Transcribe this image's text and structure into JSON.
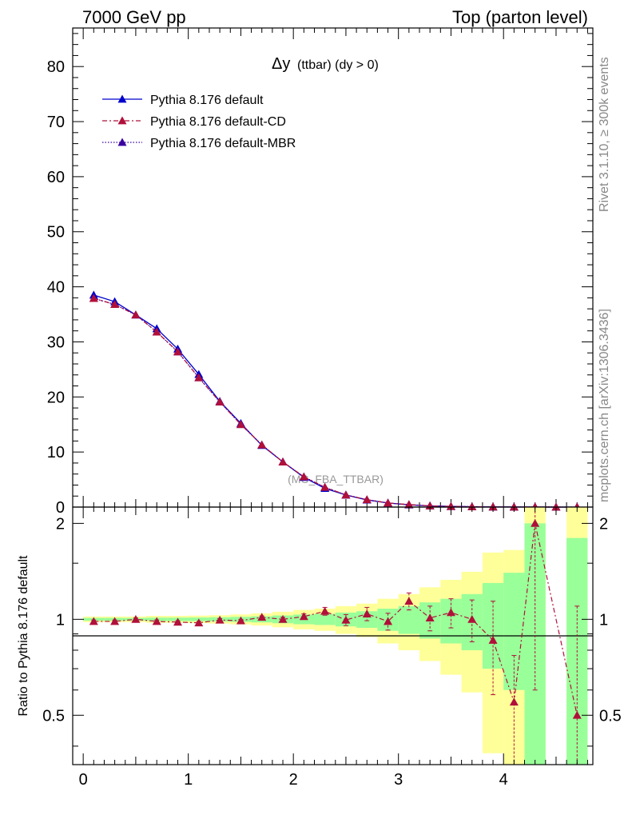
{
  "header": {
    "left": "7000 GeV pp",
    "right": "Top (parton level)"
  },
  "side_labels": {
    "rivet": "Rivet 3.1.10, ≥ 300k events",
    "mcplots": "mcplots.cern.ch [arXiv:1306.3436]"
  },
  "chart_data": {
    "type": "line",
    "title_main": "Δy",
    "title_sub": "(ttbar) (dy > 0)",
    "watermark": "(MC_FBA_TTBAR)",
    "ratio_ylabel": "Ratio to Pythia 8.176 default",
    "xlim": [
      -0.1,
      4.85
    ],
    "ylim_main": [
      0,
      87
    ],
    "ylim_ratio": [
      0.35,
      2.25
    ],
    "x_ticks": [
      "0",
      "1",
      "2",
      "3",
      "4"
    ],
    "y_ticks_main": [
      "0",
      "10",
      "20",
      "30",
      "40",
      "50",
      "60",
      "70",
      "80"
    ],
    "y_ticks_ratio": [
      "0.5",
      "1",
      "2"
    ],
    "colors": {
      "default": "#0000cc",
      "cd": "#b0103a",
      "mbr": "#3a00a0",
      "band_outer": "#ffff99",
      "band_inner": "#99ff99"
    },
    "x": [
      0.1,
      0.3,
      0.5,
      0.7,
      0.9,
      1.1,
      1.3,
      1.5,
      1.7,
      1.9,
      2.1,
      2.3,
      2.5,
      2.7,
      2.9,
      3.1,
      3.3,
      3.5,
      3.7,
      3.9,
      4.1,
      4.3,
      4.5,
      4.7
    ],
    "series": [
      {
        "name": "Pythia 8.176 default",
        "values": [
          38.5,
          37.3,
          34.9,
          32.4,
          28.7,
          24.1,
          19.2,
          15.2,
          11.2,
          8.2,
          5.4,
          3.4,
          2.2,
          1.3,
          0.75,
          0.4,
          0.22,
          0.12,
          0.06,
          0.035,
          0.02,
          0.01,
          0.005,
          0.004
        ]
      },
      {
        "name": "Pythia 8.176 default-CD",
        "values": [
          37.9,
          36.8,
          34.9,
          31.8,
          28.2,
          23.5,
          19.1,
          15.0,
          11.3,
          8.2,
          5.5,
          3.6,
          2.2,
          1.35,
          0.74,
          0.45,
          0.22,
          0.12,
          0.06,
          0.03,
          0.011,
          0.02,
          0.003,
          0.002
        ]
      },
      {
        "name": "Pythia 8.176 default-MBR",
        "values": [
          37.9,
          36.8,
          34.9,
          31.8,
          28.2,
          23.5,
          19.1,
          15.0,
          11.3,
          8.2,
          5.5,
          3.6,
          2.2,
          1.35,
          0.74,
          0.45,
          0.22,
          0.12,
          0.06,
          0.03,
          0.011,
          0.02,
          0.003,
          0.002
        ]
      }
    ],
    "ratio": [
      0.985,
      0.985,
      1.0,
      0.985,
      0.98,
      0.975,
      0.995,
      0.99,
      1.015,
      1.0,
      1.02,
      1.06,
      0.995,
      1.04,
      0.985,
      1.14,
      1.01,
      1.05,
      1.0,
      0.86,
      0.55,
      2.0,
      null,
      0.5
    ],
    "ratio_err": [
      0.01,
      0.01,
      0.01,
      0.01,
      0.01,
      0.01,
      0.01,
      0.01,
      0.01,
      0.015,
      0.02,
      0.03,
      0.04,
      0.05,
      0.06,
      0.07,
      0.09,
      0.11,
      0.15,
      0.28,
      0.22,
      1.4,
      null,
      0.6
    ],
    "band_inner": [
      0.01,
      0.01,
      0.01,
      0.012,
      0.012,
      0.013,
      0.015,
      0.018,
      0.022,
      0.028,
      0.035,
      0.04,
      0.05,
      0.06,
      0.08,
      0.1,
      0.13,
      0.16,
      0.2,
      0.3,
      0.4,
      1.0,
      null,
      0.8
    ],
    "band_outer": [
      0.02,
      0.02,
      0.02,
      0.025,
      0.025,
      0.027,
      0.03,
      0.036,
      0.044,
      0.056,
      0.07,
      0.08,
      0.1,
      0.12,
      0.16,
      0.2,
      0.26,
      0.33,
      0.41,
      0.62,
      0.65,
      1.4,
      null,
      1.3
    ]
  }
}
